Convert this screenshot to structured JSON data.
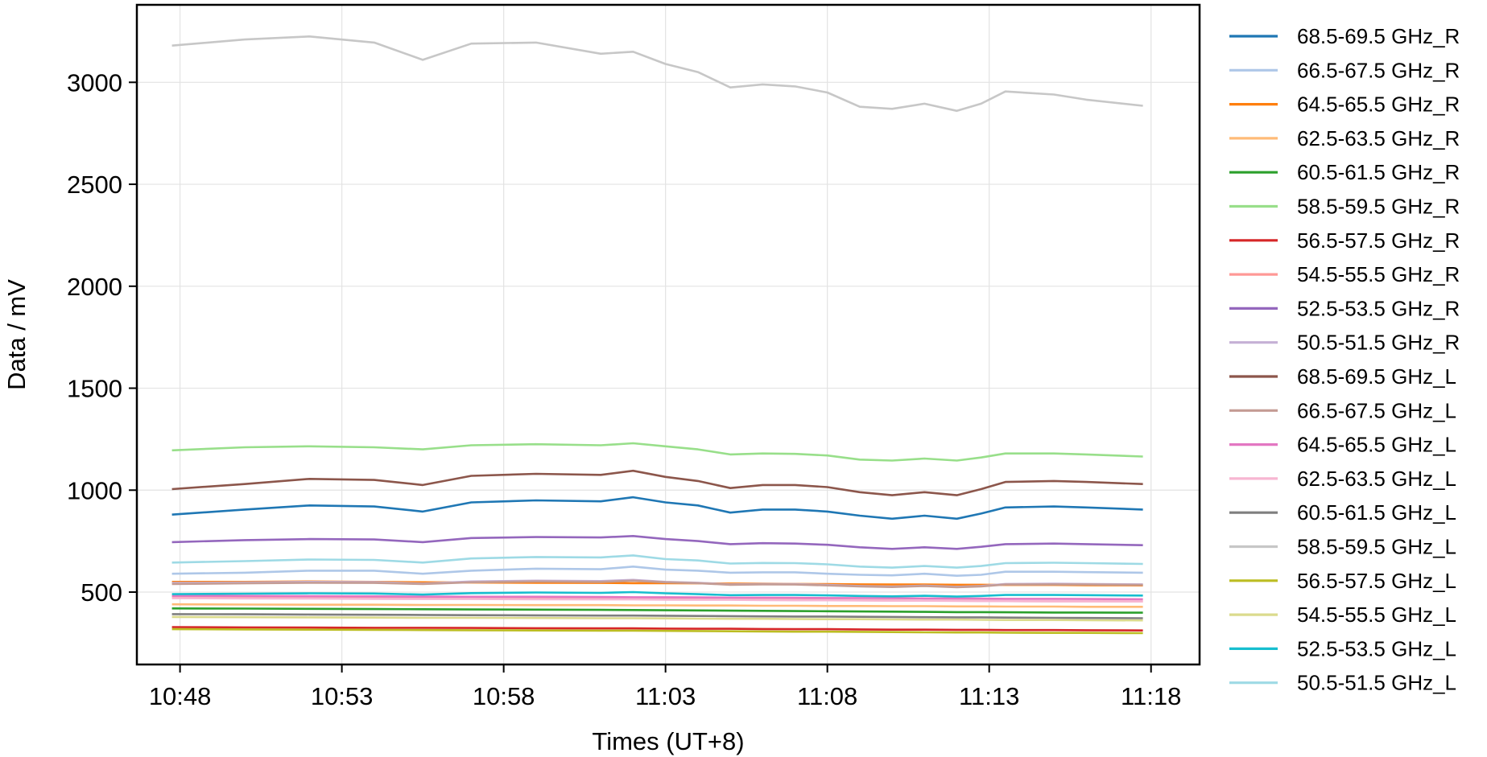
{
  "chart_data": {
    "type": "line",
    "title": "",
    "xlabel": "Times (UT+8)",
    "ylabel": "Data / mV",
    "x_ticks": [
      "10:48",
      "10:53",
      "10:58",
      "11:03",
      "11:08",
      "11:13",
      "11:18"
    ],
    "y_ticks": [
      500,
      1000,
      1500,
      2000,
      2500,
      3000
    ],
    "xlim": [
      "10:46:40",
      "11:19:30"
    ],
    "ylim": [
      145,
      3380
    ],
    "grid": true,
    "legend_position": "outside-right",
    "x": [
      "10:47:45",
      "10:50:00",
      "10:52:00",
      "10:54:00",
      "10:55:30",
      "10:57:00",
      "10:59:00",
      "11:01:00",
      "11:02:00",
      "11:03:00",
      "11:04:00",
      "11:05:00",
      "11:06:00",
      "11:07:00",
      "11:08:00",
      "11:09:00",
      "11:10:00",
      "11:11:00",
      "11:12:00",
      "11:12:45",
      "11:13:30",
      "11:15:00",
      "11:16:00",
      "11:17:45"
    ],
    "series": [
      {
        "name": "68.5-69.5 GHz_R",
        "color": "#1f77b4",
        "values": [
          880,
          905,
          925,
          920,
          895,
          940,
          950,
          945,
          965,
          940,
          925,
          890,
          905,
          905,
          895,
          875,
          860,
          875,
          860,
          885,
          915,
          920,
          915,
          905
        ]
      },
      {
        "name": "66.5-67.5 GHz_R",
        "color": "#aec7e8",
        "values": [
          590,
          595,
          605,
          605,
          590,
          605,
          615,
          612,
          625,
          610,
          605,
          595,
          597,
          597,
          590,
          585,
          582,
          590,
          580,
          585,
          600,
          600,
          598,
          595
        ]
      },
      {
        "name": "64.5-65.5 GHz_R",
        "color": "#ff7f0e",
        "values": [
          550,
          550,
          552,
          550,
          548,
          547,
          546,
          545,
          544,
          544,
          543,
          542,
          541,
          540,
          539,
          538,
          537,
          537,
          536,
          536,
          535,
          535,
          534,
          533
        ]
      },
      {
        "name": "62.5-63.5 GHz_R",
        "color": "#ffbb78",
        "values": [
          440,
          439,
          438,
          438,
          437,
          437,
          436,
          436,
          435,
          435,
          434,
          434,
          433,
          433,
          432,
          432,
          431,
          431,
          430,
          430,
          429,
          429,
          428,
          428
        ]
      },
      {
        "name": "60.5-61.5 GHz_R",
        "color": "#2ca02c",
        "values": [
          420,
          419,
          418,
          417,
          416,
          415,
          414,
          413,
          412,
          411,
          410,
          409,
          408,
          407,
          406,
          405,
          404,
          403,
          402,
          402,
          401,
          400,
          400,
          399
        ]
      },
      {
        "name": "58.5-59.5 GHz_R",
        "color": "#98df8a",
        "values": [
          1195,
          1210,
          1215,
          1210,
          1200,
          1220,
          1225,
          1220,
          1230,
          1215,
          1200,
          1175,
          1180,
          1178,
          1170,
          1150,
          1145,
          1155,
          1145,
          1160,
          1180,
          1180,
          1175,
          1165
        ]
      },
      {
        "name": "56.5-57.5 GHz_R",
        "color": "#d62728",
        "values": [
          328,
          327,
          326,
          325,
          325,
          324,
          323,
          322,
          322,
          321,
          320,
          320,
          319,
          318,
          318,
          317,
          316,
          316,
          315,
          315,
          314,
          314,
          313,
          312
        ]
      },
      {
        "name": "54.5-55.5 GHz_R",
        "color": "#ff9896",
        "values": [
          475,
          474,
          473,
          472,
          471,
          470,
          469,
          468,
          467,
          466,
          465,
          464,
          463,
          462,
          461,
          460,
          459,
          458,
          458,
          457,
          456,
          455,
          455,
          454
        ]
      },
      {
        "name": "52.5-53.5 GHz_R",
        "color": "#9467bd",
        "values": [
          745,
          755,
          760,
          758,
          745,
          765,
          770,
          768,
          775,
          760,
          750,
          735,
          740,
          738,
          732,
          720,
          712,
          720,
          712,
          722,
          735,
          738,
          735,
          730
        ]
      },
      {
        "name": "50.5-51.5 GHz_R",
        "color": "#c5b0d5",
        "values": [
          545,
          547,
          550,
          549,
          542,
          552,
          556,
          554,
          560,
          550,
          546,
          538,
          540,
          539,
          535,
          530,
          527,
          532,
          526,
          530,
          540,
          541,
          540,
          538
        ]
      },
      {
        "name": "68.5-69.5 GHz_L",
        "color": "#8c564b",
        "values": [
          1005,
          1030,
          1055,
          1050,
          1025,
          1070,
          1080,
          1075,
          1095,
          1065,
          1045,
          1010,
          1025,
          1025,
          1015,
          990,
          975,
          990,
          975,
          1005,
          1040,
          1045,
          1040,
          1030
        ]
      },
      {
        "name": "66.5-67.5 GHz_L",
        "color": "#c49c94",
        "values": [
          540,
          543,
          546,
          545,
          540,
          548,
          552,
          550,
          556,
          548,
          544,
          536,
          538,
          537,
          533,
          528,
          525,
          530,
          524,
          528,
          537,
          538,
          537,
          535
        ]
      },
      {
        "name": "64.5-65.5 GHz_L",
        "color": "#e377c2",
        "values": [
          482,
          481,
          480,
          479,
          478,
          477,
          477,
          476,
          475,
          475,
          474,
          473,
          473,
          472,
          471,
          471,
          470,
          469,
          469,
          468,
          467,
          467,
          466,
          465
        ]
      },
      {
        "name": "62.5-63.5 GHz_L",
        "color": "#f7b6d2",
        "values": [
          470,
          469,
          468,
          467,
          466,
          466,
          465,
          464,
          464,
          463,
          462,
          462,
          461,
          460,
          460,
          459,
          458,
          458,
          457,
          456,
          456,
          455,
          455,
          454
        ]
      },
      {
        "name": "60.5-61.5 GHz_L",
        "color": "#7f7f7f",
        "values": [
          392,
          391,
          390,
          389,
          388,
          387,
          386,
          385,
          385,
          384,
          383,
          382,
          381,
          380,
          380,
          379,
          378,
          377,
          376,
          376,
          375,
          374,
          373,
          372
        ]
      },
      {
        "name": "58.5-59.5 GHz_L",
        "color": "#c7c7c7",
        "values": [
          3180,
          3210,
          3225,
          3195,
          3110,
          3190,
          3195,
          3140,
          3150,
          3090,
          3050,
          2975,
          2990,
          2980,
          2950,
          2880,
          2870,
          2895,
          2860,
          2895,
          2955,
          2940,
          2915,
          2885
        ]
      },
      {
        "name": "56.5-57.5 GHz_L",
        "color": "#bcbd22",
        "values": [
          318,
          317,
          316,
          315,
          314,
          313,
          312,
          311,
          311,
          310,
          309,
          308,
          307,
          306,
          306,
          305,
          304,
          303,
          302,
          302,
          301,
          300,
          300,
          299
        ]
      },
      {
        "name": "54.5-55.5 GHz_L",
        "color": "#dbdb8d",
        "values": [
          378,
          377,
          376,
          375,
          374,
          374,
          373,
          372,
          372,
          371,
          370,
          369,
          369,
          368,
          367,
          367,
          366,
          365,
          365,
          364,
          363,
          363,
          362,
          361
        ]
      },
      {
        "name": "52.5-53.5 GHz_L",
        "color": "#17becf",
        "values": [
          490,
          492,
          494,
          493,
          488,
          495,
          498,
          496,
          500,
          494,
          490,
          485,
          486,
          486,
          484,
          481,
          479,
          482,
          478,
          481,
          486,
          486,
          485,
          483
        ]
      },
      {
        "name": "50.5-51.5 GHz_L",
        "color": "#9edae5",
        "values": [
          645,
          652,
          660,
          658,
          645,
          665,
          672,
          670,
          680,
          662,
          655,
          640,
          643,
          642,
          636,
          625,
          620,
          628,
          620,
          628,
          642,
          644,
          642,
          638
        ]
      }
    ]
  }
}
